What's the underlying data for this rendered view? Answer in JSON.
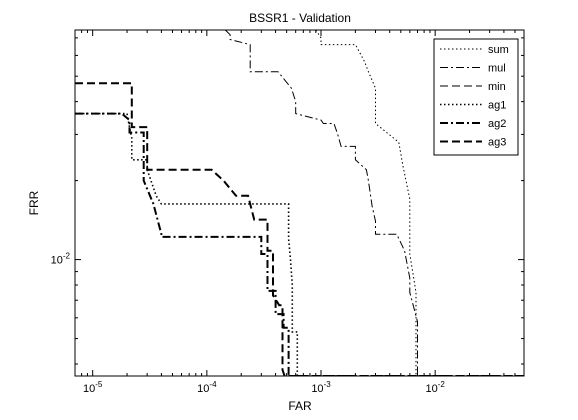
{
  "chart_data": {
    "type": "line",
    "title": "BSSR1 - Validation",
    "xlabel": "FAR",
    "ylabel": "FRR",
    "xscale": "log",
    "yscale": "log",
    "xlim": [
      7e-06,
      0.06
    ],
    "ylim": [
      0.0036,
      0.075
    ],
    "x_ticks": [
      {
        "value": 1e-05,
        "label": "10^-5"
      },
      {
        "value": 0.0001,
        "label": "10^-4"
      },
      {
        "value": 0.001,
        "label": "10^-3"
      },
      {
        "value": 0.01,
        "label": "10^-2"
      }
    ],
    "y_ticks": [
      {
        "value": 0.01,
        "label": "10^-2"
      }
    ],
    "grid": false,
    "legend_position": "top-right",
    "series": [
      {
        "name": "sum",
        "style": "dotted",
        "width": 1,
        "x": [
          0.0009,
          0.001,
          0.001,
          0.002,
          0.0024,
          0.0026,
          0.003,
          0.003,
          0.0048,
          0.0052,
          0.006,
          0.006,
          0.0068,
          0.0068,
          0.06
        ],
        "y": [
          0.075,
          0.07,
          0.066,
          0.066,
          0.057,
          0.052,
          0.045,
          0.033,
          0.028,
          0.023,
          0.017,
          0.0105,
          0.0075,
          0.0036,
          0.0036
        ]
      },
      {
        "name": "mul",
        "style": "dashdot",
        "width": 1,
        "x": [
          0.000145,
          0.00016,
          0.00016,
          0.00024,
          0.00024,
          0.00042,
          0.00055,
          0.0006,
          0.0006,
          0.001,
          0.00105,
          0.0013,
          0.0014,
          0.0015,
          0.002,
          0.002,
          0.0025,
          0.0026,
          0.0028,
          0.003,
          0.003,
          0.0046,
          0.0054,
          0.006,
          0.006,
          0.007,
          0.007,
          0.06
        ],
        "y": [
          0.075,
          0.072,
          0.069,
          0.066,
          0.052,
          0.052,
          0.045,
          0.04,
          0.036,
          0.034,
          0.033,
          0.033,
          0.03,
          0.027,
          0.027,
          0.024,
          0.022,
          0.02,
          0.016,
          0.014,
          0.0125,
          0.0125,
          0.0108,
          0.0085,
          0.0075,
          0.0058,
          0.0036,
          0.0036
        ]
      },
      {
        "name": "ag1",
        "style": "dotted",
        "width": 1.6,
        "x": [
          7e-06,
          2e-05,
          2.1e-05,
          2.2e-05,
          2.2e-05,
          3e-05,
          3e-05,
          3.6e-05,
          4e-05,
          0.0001,
          0.0001,
          0.00038,
          0.00052,
          0.00052,
          0.00054,
          0.00056,
          0.00056,
          0.00062,
          0.00062,
          0.06
        ],
        "y": [
          0.036,
          0.036,
          0.032,
          0.029,
          0.024,
          0.024,
          0.022,
          0.0175,
          0.0163,
          0.0163,
          0.0163,
          0.0163,
          0.0163,
          0.012,
          0.01,
          0.008,
          0.0053,
          0.0053,
          0.0036,
          0.0036
        ]
      },
      {
        "name": "ag2",
        "style": "dashdot",
        "width": 2,
        "x": [
          7e-06,
          1.8e-05,
          2.1e-05,
          2.1e-05,
          2.8e-05,
          2.8e-05,
          3.4e-05,
          4e-05,
          4e-05,
          0.0003,
          0.0003,
          0.00034,
          0.00034,
          0.0004,
          0.0004,
          0.00047,
          0.00047,
          0.00052,
          0.00052,
          0.06
        ],
        "y": [
          0.036,
          0.036,
          0.034,
          0.0305,
          0.0305,
          0.02,
          0.0163,
          0.0125,
          0.0122,
          0.0122,
          0.0105,
          0.0105,
          0.0076,
          0.0076,
          0.0062,
          0.0062,
          0.0055,
          0.0055,
          0.0036,
          0.0036
        ]
      },
      {
        "name": "ag3",
        "style": "dashed",
        "width": 2,
        "x": [
          7e-06,
          2.2e-05,
          2.2e-05,
          3e-05,
          3e-05,
          5e-05,
          0.00011,
          0.00014,
          0.00018,
          0.00023,
          0.00026,
          0.00034,
          0.00034,
          0.00038,
          0.00038,
          0.00043,
          0.00046,
          0.00046,
          0.00048,
          0.06
        ],
        "y": [
          0.047,
          0.047,
          0.032,
          0.032,
          0.022,
          0.022,
          0.022,
          0.02,
          0.0175,
          0.0175,
          0.0142,
          0.0142,
          0.0108,
          0.0108,
          0.0073,
          0.0067,
          0.0067,
          0.0038,
          0.0036,
          0.0036
        ]
      }
    ],
    "legend": [
      {
        "name": "sum",
        "style": "dotted",
        "width": 1
      },
      {
        "name": "mul",
        "style": "dashdot",
        "width": 1
      },
      {
        "name": "min",
        "style": "dashed",
        "width": 1
      },
      {
        "name": "ag1",
        "style": "dotted",
        "width": 1.6
      },
      {
        "name": "ag2",
        "style": "dashdot",
        "width": 2
      },
      {
        "name": "ag3",
        "style": "dashed",
        "width": 2
      }
    ]
  }
}
